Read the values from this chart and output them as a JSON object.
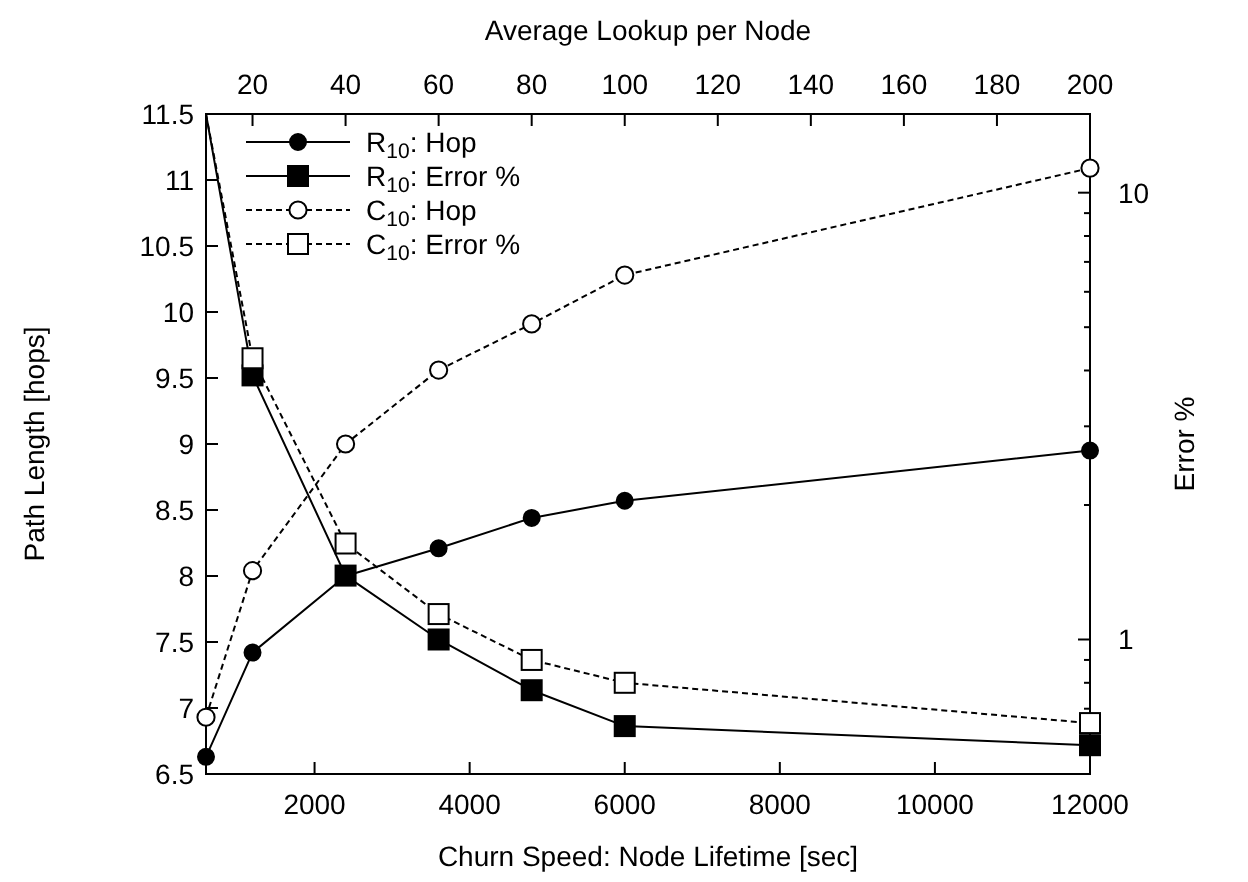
{
  "chart_data": {
    "type": "line",
    "xlabel": "Churn Speed: Node Lifetime [sec]",
    "ylabel": "Path Length [hops]",
    "y2label": "Error %",
    "x2label": "Average Lookup per Node",
    "x": [
      600,
      1200,
      2400,
      3600,
      4800,
      6000,
      12000
    ],
    "xlim": [
      600,
      12000
    ],
    "xticks": [
      2000,
      4000,
      6000,
      8000,
      10000,
      12000
    ],
    "x2lim": [
      10,
      200
    ],
    "x2ticks": [
      20,
      40,
      60,
      80,
      100,
      120,
      140,
      160,
      180,
      200
    ],
    "ylim": [
      6.5,
      11.5
    ],
    "yticks": [
      6.5,
      7,
      7.5,
      8,
      8.5,
      9,
      9.5,
      10,
      10.5,
      11,
      11.5
    ],
    "y2lim": [
      0.5,
      15
    ],
    "y2ticks": [
      {
        "value": 0.6,
        "label": null
      },
      {
        "value": 0.7,
        "label": null
      },
      {
        "value": 0.8,
        "label": null
      },
      {
        "value": 0.9,
        "label": null
      },
      1,
      {
        "value": 2,
        "label": null
      },
      {
        "value": 3,
        "label": null
      },
      {
        "value": 4,
        "label": null
      },
      {
        "value": 5,
        "label": null
      },
      {
        "value": 6,
        "label": null
      },
      {
        "value": 7,
        "label": null
      },
      {
        "value": 8,
        "label": null
      },
      {
        "value": 9,
        "label": null
      },
      10
    ],
    "log": "y2",
    "grid": false,
    "legend": "top left",
    "series": [
      {
        "name": "R$_{10}$: Hop",
        "color": "#000000",
        "marker": "circle",
        "line_style": "solid",
        "values": [
          6.63,
          7.42,
          8.0,
          8.21,
          8.44,
          8.57,
          8.95
        ]
      },
      {
        "name": "R$_{10}$: Error %",
        "color": "#000000",
        "marker": "square",
        "line_style": "solid",
        "axis": "y2",
        "values": [
          15,
          3.9,
          1.39,
          1.0,
          0.77,
          0.64,
          0.58
        ]
      },
      {
        "name": "C$_{10}$: Hop",
        "color": "#000000",
        "marker": "circle",
        "line_style": "dashed",
        "values": [
          6.93,
          8.04,
          9.0,
          9.56,
          9.91,
          10.28,
          11.09
        ]
      },
      {
        "name": "C$_{10}$: Error %",
        "color": "#000000",
        "marker": "square",
        "line_style": "dashed",
        "axis": "y2",
        "values": [
          15,
          4.26,
          1.64,
          1.14,
          0.9,
          0.8,
          0.65
        ]
      }
    ]
  }
}
